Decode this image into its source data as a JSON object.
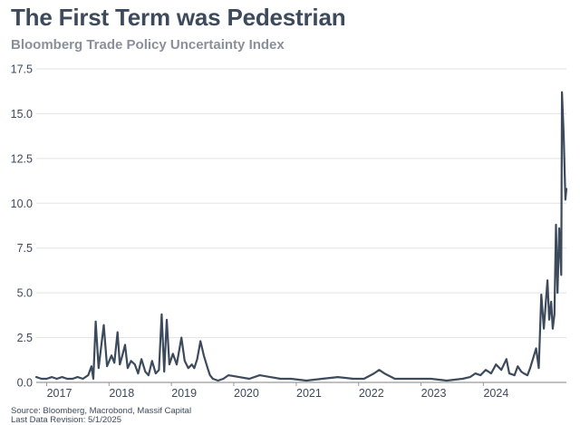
{
  "title": "The First Term was Pedestrian",
  "subtitle": "Bloomberg Trade Policy Uncertainty Index",
  "footer": {
    "source": "Source: Bloomberg, Macrobond, Massif Capital",
    "revision": "Last Data Revision: 5/1/2025"
  },
  "colors": {
    "line": "#3d4a5c",
    "grid": "#e2e2e2",
    "axis": "#9a9a9a"
  },
  "chart_data": {
    "type": "line",
    "title": "The First Term was Pedestrian",
    "subtitle": "Bloomberg Trade Policy Uncertainty Index",
    "xlim": [
      "2016-11-01",
      "2025-05-01"
    ],
    "ylim": [
      0,
      17.5
    ],
    "ytick_labels": [
      "0.0",
      "2.5",
      "5.0",
      "7.5",
      "10.0",
      "12.5",
      "15.0",
      "17.5"
    ],
    "xtick_labels": [
      "2017",
      "2018",
      "2019",
      "2020",
      "2021",
      "2022",
      "2023",
      "2024"
    ],
    "grid": "horizontal",
    "series": [
      {
        "x": [
          "2016-11-01",
          "2016-12-01",
          "2017-01-01",
          "2017-02-01",
          "2017-03-01",
          "2017-04-01",
          "2017-05-01",
          "2017-06-01",
          "2017-07-01",
          "2017-08-01",
          "2017-09-01",
          "2017-09-20",
          "2017-10-01",
          "2017-10-15",
          "2017-11-01",
          "2017-12-01",
          "2017-12-20",
          "2018-01-15",
          "2018-02-01",
          "2018-02-20",
          "2018-03-05",
          "2018-03-20",
          "2018-04-05",
          "2018-04-20",
          "2018-05-10",
          "2018-06-01",
          "2018-06-20",
          "2018-07-10",
          "2018-08-01",
          "2018-08-20",
          "2018-09-10",
          "2018-10-01",
          "2018-10-20",
          "2018-11-05",
          "2018-11-20",
          "2018-12-05",
          "2018-12-20",
          "2019-01-10",
          "2019-02-01",
          "2019-03-01",
          "2019-03-20",
          "2019-04-10",
          "2019-05-01",
          "2019-05-15",
          "2019-06-01",
          "2019-06-20",
          "2019-07-10",
          "2019-08-01",
          "2019-08-15",
          "2019-09-01",
          "2019-10-01",
          "2019-11-01",
          "2019-12-01",
          "2020-02-01",
          "2020-04-01",
          "2020-06-01",
          "2020-08-01",
          "2020-10-01",
          "2020-12-01",
          "2021-03-01",
          "2021-06-01",
          "2021-09-01",
          "2021-12-01",
          "2022-02-01",
          "2022-04-01",
          "2022-05-01",
          "2022-06-01",
          "2022-08-01",
          "2022-10-01",
          "2022-12-01",
          "2023-03-01",
          "2023-06-01",
          "2023-09-01",
          "2023-10-15",
          "2023-11-15",
          "2023-12-15",
          "2024-01-15",
          "2024-02-15",
          "2024-03-15",
          "2024-04-15",
          "2024-05-15",
          "2024-06-01",
          "2024-07-01",
          "2024-07-20",
          "2024-08-10",
          "2024-08-25",
          "2024-09-15",
          "2024-10-01",
          "2024-10-20",
          "2024-11-05",
          "2024-11-20",
          "2024-12-05",
          "2024-12-20",
          "2025-01-10",
          "2025-01-20",
          "2025-02-01",
          "2025-02-10",
          "2025-02-20",
          "2025-03-01",
          "2025-03-10",
          "2025-03-20",
          "2025-04-01",
          "2025-04-05",
          "2025-04-15",
          "2025-04-25",
          "2025-05-01"
        ],
        "values": [
          0.3,
          0.2,
          0.2,
          0.3,
          0.2,
          0.3,
          0.2,
          0.2,
          0.3,
          0.2,
          0.4,
          0.9,
          0.2,
          3.4,
          0.8,
          3.2,
          0.9,
          1.5,
          1.1,
          2.8,
          1.0,
          1.5,
          2.1,
          0.8,
          1.2,
          1.0,
          0.5,
          1.3,
          0.6,
          0.4,
          1.2,
          0.5,
          0.7,
          3.8,
          0.6,
          3.5,
          1.0,
          1.6,
          1.0,
          2.5,
          1.2,
          0.8,
          1.0,
          0.8,
          1.3,
          2.3,
          1.5,
          0.8,
          0.4,
          0.2,
          0.1,
          0.2,
          0.4,
          0.3,
          0.2,
          0.4,
          0.3,
          0.2,
          0.2,
          0.1,
          0.2,
          0.3,
          0.2,
          0.2,
          0.5,
          0.7,
          0.5,
          0.2,
          0.2,
          0.2,
          0.2,
          0.1,
          0.2,
          0.3,
          0.5,
          0.4,
          0.7,
          0.5,
          1.0,
          0.7,
          1.3,
          0.5,
          0.4,
          0.9,
          0.6,
          0.5,
          0.4,
          0.8,
          1.4,
          1.9,
          0.8,
          4.9,
          3.0,
          5.7,
          3.5,
          4.5,
          3.0,
          3.8,
          8.8,
          5.0,
          8.6,
          6.0,
          16.2,
          13.8,
          10.2,
          10.8
        ]
      }
    ]
  }
}
